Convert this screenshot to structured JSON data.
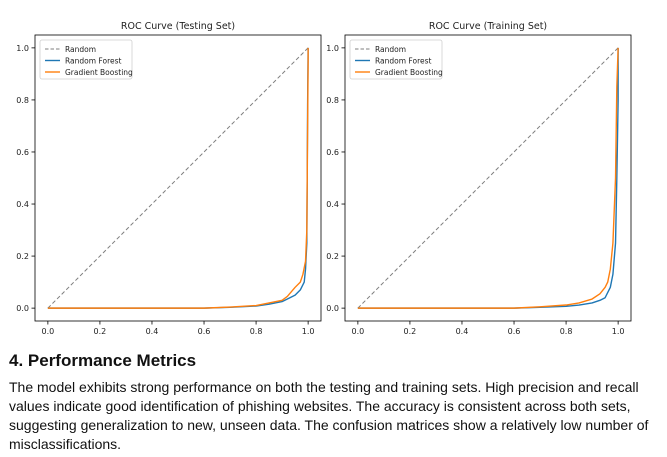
{
  "chart_data": [
    {
      "type": "line",
      "title": "ROC Curve (Testing Set)",
      "xlabel": "",
      "ylabel": "",
      "xlim": [
        0,
        1
      ],
      "ylim": [
        0,
        1
      ],
      "xticks": [
        "0.0",
        "0.2",
        "0.4",
        "0.6",
        "0.8",
        "1.0"
      ],
      "yticks": [
        "0.0",
        "0.2",
        "0.4",
        "0.6",
        "0.8",
        "1.0"
      ],
      "grid": false,
      "legend_position": "top-left",
      "series": [
        {
          "name": "Random",
          "color": "#7f7f7f",
          "style": "dashed",
          "x": [
            0,
            1
          ],
          "y": [
            0,
            1
          ]
        },
        {
          "name": "Random Forest",
          "color": "#1f77b4",
          "style": "solid",
          "x": [
            0,
            0.6,
            0.7,
            0.8,
            0.85,
            0.9,
            0.93,
            0.95,
            0.97,
            0.985,
            0.99,
            0.995,
            0.998,
            1.0
          ],
          "y": [
            0,
            0,
            0.003,
            0.008,
            0.015,
            0.025,
            0.04,
            0.05,
            0.07,
            0.1,
            0.15,
            0.25,
            0.78,
            1.0
          ]
        },
        {
          "name": "Gradient Boosting",
          "color": "#ff7f0e",
          "style": "solid",
          "x": [
            0,
            0.6,
            0.7,
            0.8,
            0.85,
            0.9,
            0.92,
            0.95,
            0.97,
            0.98,
            0.99,
            0.995,
            1.0,
            1.0
          ],
          "y": [
            0,
            0,
            0.004,
            0.01,
            0.02,
            0.03,
            0.045,
            0.08,
            0.1,
            0.13,
            0.18,
            0.3,
            0.95,
            1.0
          ]
        }
      ]
    },
    {
      "type": "line",
      "title": "ROC Curve (Training Set)",
      "xlabel": "",
      "ylabel": "",
      "xlim": [
        0,
        1
      ],
      "ylim": [
        0,
        1
      ],
      "xticks": [
        "0.0",
        "0.2",
        "0.4",
        "0.6",
        "0.8",
        "1.0"
      ],
      "yticks": [
        "0.0",
        "0.2",
        "0.4",
        "0.6",
        "0.8",
        "1.0"
      ],
      "grid": false,
      "legend_position": "top-left",
      "series": [
        {
          "name": "Random",
          "color": "#7f7f7f",
          "style": "dashed",
          "x": [
            0,
            1
          ],
          "y": [
            0,
            1
          ]
        },
        {
          "name": "Random Forest",
          "color": "#1f77b4",
          "style": "solid",
          "x": [
            0,
            0.6,
            0.7,
            0.8,
            0.85,
            0.9,
            0.93,
            0.95,
            0.97,
            0.98,
            0.99,
            0.995,
            1.0,
            1.0
          ],
          "y": [
            0,
            0,
            0.003,
            0.007,
            0.012,
            0.02,
            0.03,
            0.04,
            0.08,
            0.13,
            0.25,
            0.5,
            0.8,
            1.0
          ]
        },
        {
          "name": "Gradient Boosting",
          "color": "#ff7f0e",
          "style": "solid",
          "x": [
            0,
            0.6,
            0.7,
            0.8,
            0.85,
            0.9,
            0.93,
            0.95,
            0.96,
            0.97,
            0.98,
            0.99,
            0.995,
            1.0
          ],
          "y": [
            0,
            0,
            0.005,
            0.012,
            0.02,
            0.035,
            0.055,
            0.08,
            0.1,
            0.15,
            0.25,
            0.5,
            0.85,
            1.0
          ]
        }
      ]
    }
  ],
  "section": {
    "heading": "4. Performance Metrics",
    "body": "The model exhibits strong performance on both the testing and training sets. High precision and recall values indicate good identification of phishing websites. The accuracy is consistent across both sets, suggesting generalization to new, unseen data. The confusion matrices show a relatively low number of misclassifications."
  }
}
